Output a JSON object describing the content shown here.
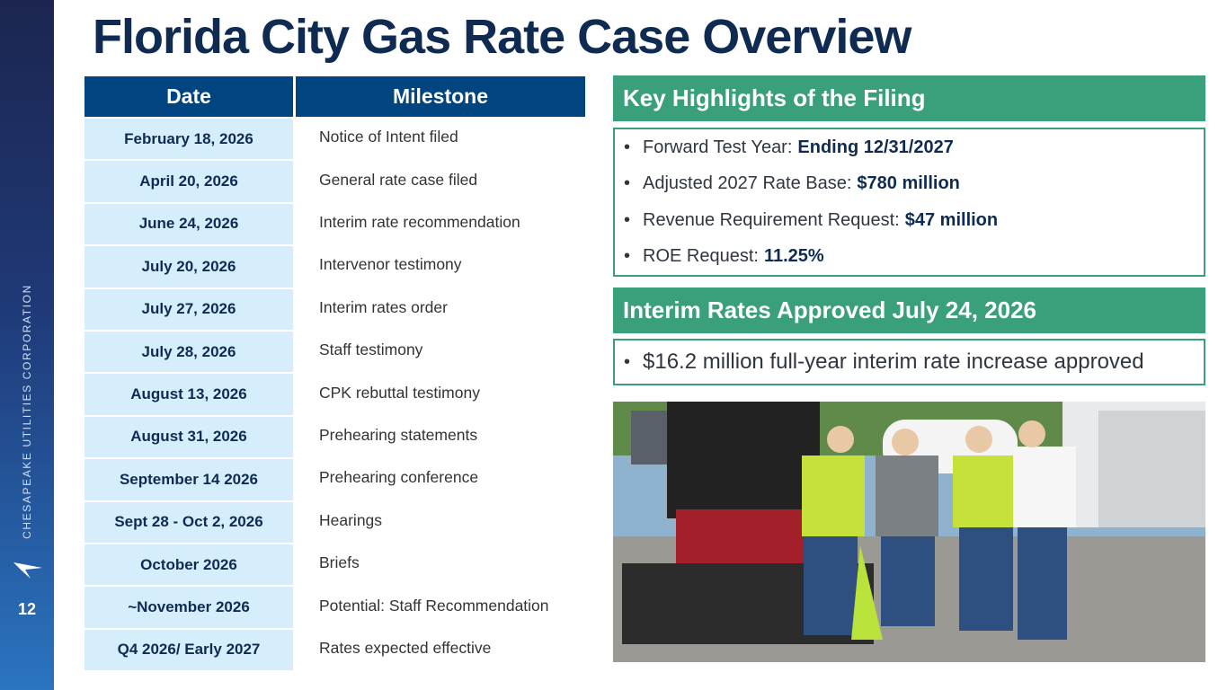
{
  "sidebar": {
    "company": "CHESAPEAKE UTILITIES CORPORATION",
    "page_number": "12"
  },
  "title": "Florida City Gas Rate Case Overview",
  "table": {
    "headers": [
      "Date",
      "Milestone"
    ],
    "rows": [
      [
        "February 18, 2026",
        "Notice of Intent filed"
      ],
      [
        "April 20, 2026",
        "General rate case filed"
      ],
      [
        "June 24, 2026",
        "Interim rate recommendation"
      ],
      [
        "July 20, 2026",
        "Intervenor testimony"
      ],
      [
        "July 27, 2026",
        "Interim rates order"
      ],
      [
        "July 28, 2026",
        "Staff testimony"
      ],
      [
        "August 13, 2026",
        "CPK rebuttal testimony"
      ],
      [
        "August 31, 2026",
        "Prehearing statements"
      ],
      [
        "September 14 2026",
        "Prehearing conference"
      ],
      [
        "Sept 28 - Oct 2, 2026",
        "Hearings"
      ],
      [
        "October 2026",
        "Briefs"
      ],
      [
        "~November 2026",
        "Potential: Staff Recommendation"
      ],
      [
        "Q4 2026/ Early 2027",
        "Rates expected effective"
      ]
    ]
  },
  "highlights": {
    "title": "Key Highlights of the Filing",
    "items": [
      {
        "label": "Forward Test Year:",
        "value": "Ending 12/31/2027"
      },
      {
        "label": "Adjusted 2027 Rate Base:",
        "value": "$780 million"
      },
      {
        "label": "Revenue Requirement Request:",
        "value": "$47 million"
      },
      {
        "label": "ROE Request:",
        "value": "11.25%"
      }
    ]
  },
  "interim": {
    "title": "Interim Rates Approved July 24, 2026",
    "items": [
      "$16.2 million full-year interim rate increase approved"
    ]
  }
}
